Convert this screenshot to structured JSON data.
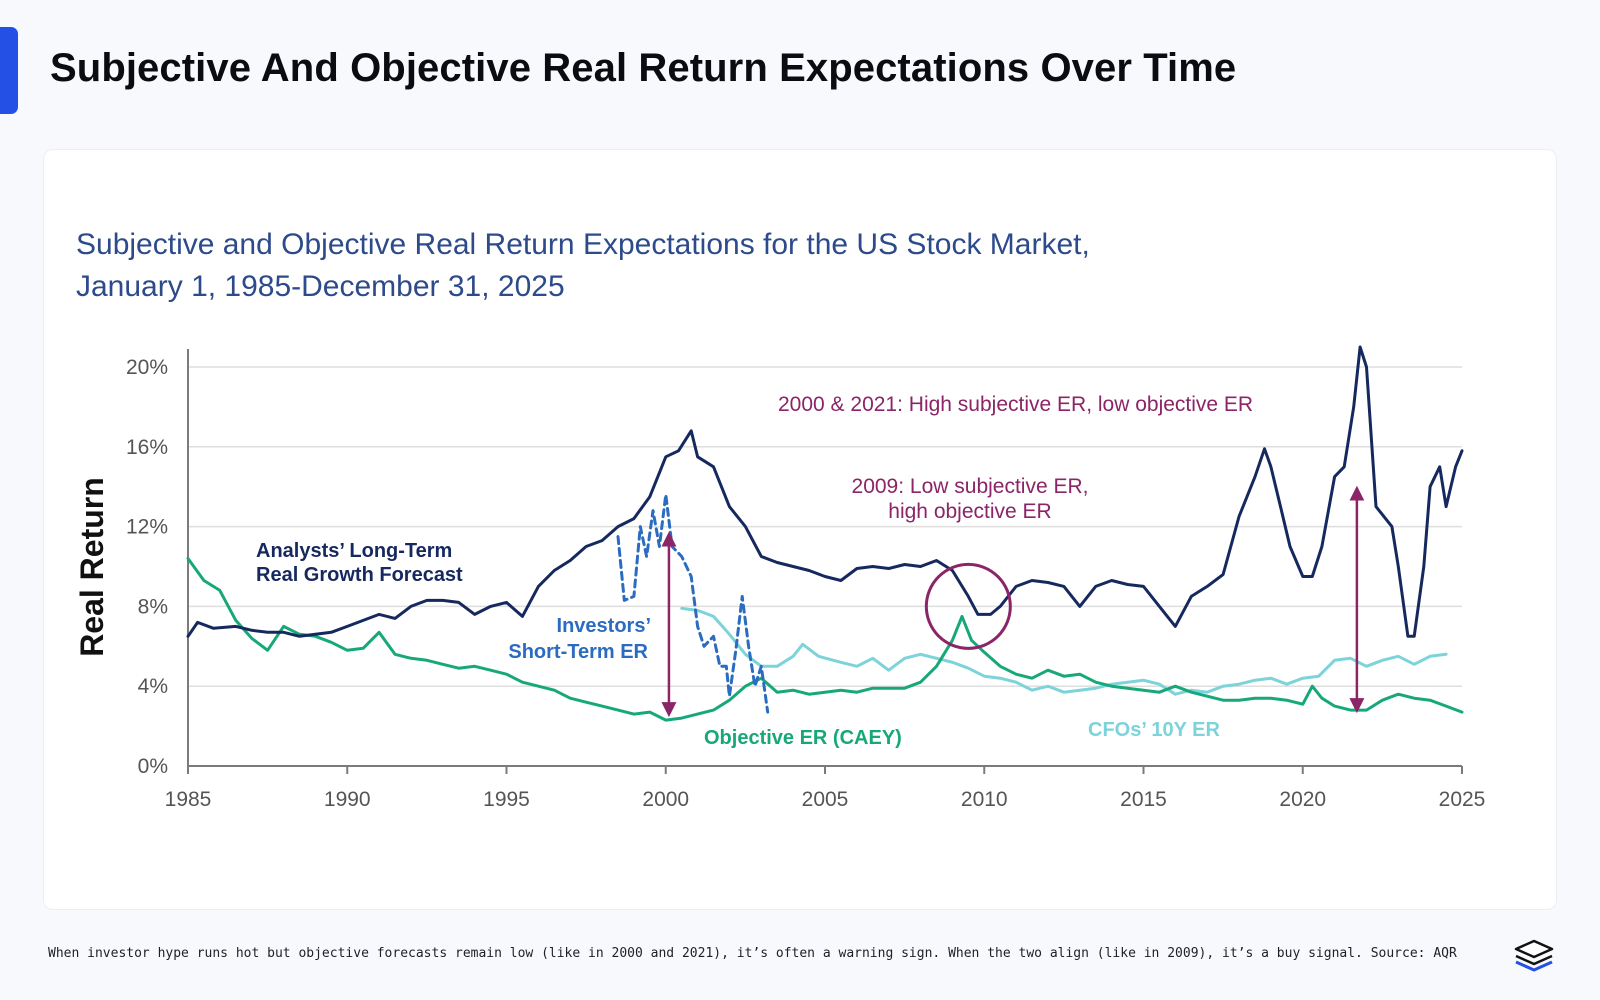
{
  "page": {
    "title": "Subjective And Objective Real Return Expectations Over Time",
    "caption": "When investor hype runs hot but objective forecasts remain low (like in 2000 and 2021), it’s often a warning sign. When the two align (like in 2009), it’s a buy signal. Source: AQR",
    "accent_color": "#2450e6",
    "logo_icon": "stacked-layers-logo-icon"
  },
  "chart_data": {
    "type": "line",
    "title_line1": "Subjective and Objective Real Return Expectations for the US Stock Market,",
    "title_line2": "January 1, 1985-December 31, 2025",
    "ylabel": "Real Return",
    "xlabel": "",
    "xlim": [
      1985,
      2025
    ],
    "ylim": [
      0,
      20
    ],
    "y_ticks": [
      0,
      4,
      8,
      12,
      16,
      20
    ],
    "y_tick_labels": [
      "0%",
      "4%",
      "8%",
      "12%",
      "16%",
      "20%"
    ],
    "x_ticks": [
      1985,
      1990,
      1995,
      2000,
      2005,
      2010,
      2015,
      2020,
      2025
    ],
    "x_tick_labels": [
      "1985",
      "1990",
      "1995",
      "2000",
      "2005",
      "2010",
      "2015",
      "2020",
      "2025"
    ],
    "grid": true,
    "series": [
      {
        "name": "Analysts' Long-Term Real Growth Forecast",
        "label_line1": "Analysts’ Long-Term",
        "label_line2": "Real Growth Forecast",
        "color": "#16295f",
        "style": "solid",
        "points": [
          [
            1985,
            6.5
          ],
          [
            1985.3,
            7.2
          ],
          [
            1985.8,
            6.9
          ],
          [
            1986.5,
            7.0
          ],
          [
            1987,
            6.8
          ],
          [
            1987.5,
            6.7
          ],
          [
            1988,
            6.7
          ],
          [
            1988.5,
            6.5
          ],
          [
            1989,
            6.6
          ],
          [
            1989.5,
            6.7
          ],
          [
            1990,
            7.0
          ],
          [
            1990.5,
            7.3
          ],
          [
            1991,
            7.6
          ],
          [
            1991.5,
            7.4
          ],
          [
            1992,
            8.0
          ],
          [
            1992.5,
            8.3
          ],
          [
            1993,
            8.3
          ],
          [
            1993.5,
            8.2
          ],
          [
            1994,
            7.6
          ],
          [
            1994.5,
            8.0
          ],
          [
            1995,
            8.2
          ],
          [
            1995.5,
            7.5
          ],
          [
            1996,
            9.0
          ],
          [
            1996.5,
            9.8
          ],
          [
            1997,
            10.3
          ],
          [
            1997.5,
            11.0
          ],
          [
            1998,
            11.3
          ],
          [
            1998.5,
            12.0
          ],
          [
            1999,
            12.4
          ],
          [
            1999.5,
            13.5
          ],
          [
            2000,
            15.5
          ],
          [
            2000.4,
            15.8
          ],
          [
            2000.8,
            16.8
          ],
          [
            2001,
            15.5
          ],
          [
            2001.5,
            15.0
          ],
          [
            2002,
            13.0
          ],
          [
            2002.5,
            12.0
          ],
          [
            2003,
            10.5
          ],
          [
            2003.5,
            10.2
          ],
          [
            2004,
            10.0
          ],
          [
            2004.5,
            9.8
          ],
          [
            2005,
            9.5
          ],
          [
            2005.5,
            9.3
          ],
          [
            2006,
            9.9
          ],
          [
            2006.5,
            10.0
          ],
          [
            2007,
            9.9
          ],
          [
            2007.5,
            10.1
          ],
          [
            2008,
            10.0
          ],
          [
            2008.5,
            10.3
          ],
          [
            2009,
            9.8
          ],
          [
            2009.5,
            8.5
          ],
          [
            2009.8,
            7.6
          ],
          [
            2010.2,
            7.6
          ],
          [
            2010.5,
            8.0
          ],
          [
            2011,
            9.0
          ],
          [
            2011.5,
            9.3
          ],
          [
            2012,
            9.2
          ],
          [
            2012.5,
            9.0
          ],
          [
            2013,
            8.0
          ],
          [
            2013.5,
            9.0
          ],
          [
            2014,
            9.3
          ],
          [
            2014.5,
            9.1
          ],
          [
            2015,
            9.0
          ],
          [
            2015.5,
            8.0
          ],
          [
            2016,
            7.0
          ],
          [
            2016.5,
            8.5
          ],
          [
            2017,
            9.0
          ],
          [
            2017.5,
            9.6
          ],
          [
            2018,
            12.5
          ],
          [
            2018.5,
            14.5
          ],
          [
            2018.8,
            15.9
          ],
          [
            2019,
            15.0
          ],
          [
            2019.3,
            13.0
          ],
          [
            2019.6,
            11.0
          ],
          [
            2020,
            9.5
          ],
          [
            2020.3,
            9.5
          ],
          [
            2020.6,
            11.0
          ],
          [
            2021,
            14.5
          ],
          [
            2021.3,
            15.0
          ],
          [
            2021.6,
            18.0
          ],
          [
            2021.8,
            21.0
          ],
          [
            2022,
            20.0
          ],
          [
            2022.3,
            13.0
          ],
          [
            2022.8,
            12.0
          ],
          [
            2023,
            10.0
          ],
          [
            2023.3,
            6.5
          ],
          [
            2023.5,
            6.5
          ],
          [
            2023.8,
            10.0
          ],
          [
            2024,
            14.0
          ],
          [
            2024.3,
            15.0
          ],
          [
            2024.5,
            13.0
          ],
          [
            2024.8,
            15.0
          ],
          [
            2025,
            15.8
          ]
        ]
      },
      {
        "name": "Investors' Short-Term ER",
        "label_line1": "Investors’",
        "label_line2": "Short-Term ER",
        "color": "#2b6cc0",
        "style": "dashed",
        "points": [
          [
            1998.5,
            11.5
          ],
          [
            1998.7,
            8.3
          ],
          [
            1999,
            8.5
          ],
          [
            1999.2,
            12.0
          ],
          [
            1999.4,
            10.5
          ],
          [
            1999.6,
            12.8
          ],
          [
            1999.8,
            11.0
          ],
          [
            2000,
            13.6
          ],
          [
            2000.2,
            11.0
          ],
          [
            2000.5,
            10.5
          ],
          [
            2000.8,
            9.5
          ],
          [
            2001,
            7.0
          ],
          [
            2001.2,
            6.0
          ],
          [
            2001.5,
            6.5
          ],
          [
            2001.7,
            5.0
          ],
          [
            2001.9,
            5.0
          ],
          [
            2002,
            3.5
          ],
          [
            2002.2,
            5.8
          ],
          [
            2002.4,
            8.5
          ],
          [
            2002.6,
            6.0
          ],
          [
            2002.8,
            4.0
          ],
          [
            2003,
            5.0
          ],
          [
            2003.2,
            2.7
          ]
        ]
      },
      {
        "name": "Objective ER (CAEY)",
        "label_line1": "Objective ER (CAEY)",
        "label_line2": "",
        "color": "#17a87a",
        "style": "solid",
        "points": [
          [
            1985,
            10.4
          ],
          [
            1985.5,
            9.3
          ],
          [
            1986,
            8.8
          ],
          [
            1986.5,
            7.3
          ],
          [
            1987,
            6.4
          ],
          [
            1987.5,
            5.8
          ],
          [
            1988,
            7.0
          ],
          [
            1988.5,
            6.6
          ],
          [
            1989,
            6.5
          ],
          [
            1989.5,
            6.2
          ],
          [
            1990,
            5.8
          ],
          [
            1990.5,
            5.9
          ],
          [
            1991,
            6.7
          ],
          [
            1991.5,
            5.6
          ],
          [
            1992,
            5.4
          ],
          [
            1992.5,
            5.3
          ],
          [
            1993,
            5.1
          ],
          [
            1993.5,
            4.9
          ],
          [
            1994,
            5.0
          ],
          [
            1994.5,
            4.8
          ],
          [
            1995,
            4.6
          ],
          [
            1995.5,
            4.2
          ],
          [
            1996,
            4.0
          ],
          [
            1996.5,
            3.8
          ],
          [
            1997,
            3.4
          ],
          [
            1997.5,
            3.2
          ],
          [
            1998,
            3.0
          ],
          [
            1998.5,
            2.8
          ],
          [
            1999,
            2.6
          ],
          [
            1999.5,
            2.7
          ],
          [
            2000,
            2.3
          ],
          [
            2000.5,
            2.4
          ],
          [
            2001,
            2.6
          ],
          [
            2001.5,
            2.8
          ],
          [
            2002,
            3.3
          ],
          [
            2002.5,
            4.0
          ],
          [
            2003,
            4.4
          ],
          [
            2003.5,
            3.7
          ],
          [
            2004,
            3.8
          ],
          [
            2004.5,
            3.6
          ],
          [
            2005,
            3.7
          ],
          [
            2005.5,
            3.8
          ],
          [
            2006,
            3.7
          ],
          [
            2006.5,
            3.9
          ],
          [
            2007,
            3.9
          ],
          [
            2007.5,
            3.9
          ],
          [
            2008,
            4.2
          ],
          [
            2008.5,
            5.0
          ],
          [
            2009,
            6.3
          ],
          [
            2009.3,
            7.5
          ],
          [
            2009.6,
            6.3
          ],
          [
            2010,
            5.7
          ],
          [
            2010.5,
            5.0
          ],
          [
            2011,
            4.6
          ],
          [
            2011.5,
            4.4
          ],
          [
            2012,
            4.8
          ],
          [
            2012.5,
            4.5
          ],
          [
            2013,
            4.6
          ],
          [
            2013.5,
            4.2
          ],
          [
            2014,
            4.0
          ],
          [
            2014.5,
            3.9
          ],
          [
            2015,
            3.8
          ],
          [
            2015.5,
            3.7
          ],
          [
            2016,
            4.0
          ],
          [
            2016.5,
            3.7
          ],
          [
            2017,
            3.5
          ],
          [
            2017.5,
            3.3
          ],
          [
            2018,
            3.3
          ],
          [
            2018.5,
            3.4
          ],
          [
            2019,
            3.4
          ],
          [
            2019.5,
            3.3
          ],
          [
            2020,
            3.1
          ],
          [
            2020.3,
            4.0
          ],
          [
            2020.6,
            3.4
          ],
          [
            2021,
            3.0
          ],
          [
            2021.5,
            2.8
          ],
          [
            2022,
            2.8
          ],
          [
            2022.5,
            3.3
          ],
          [
            2023,
            3.6
          ],
          [
            2023.5,
            3.4
          ],
          [
            2024,
            3.3
          ],
          [
            2024.5,
            3.0
          ],
          [
            2025,
            2.7
          ]
        ]
      },
      {
        "name": "CFOs' 10Y ER",
        "label_line1": "CFOs’ 10Y ER",
        "label_line2": "",
        "color": "#7dd3da",
        "style": "solid",
        "points": [
          [
            2000.5,
            7.9
          ],
          [
            2001,
            7.8
          ],
          [
            2001.5,
            7.5
          ],
          [
            2002,
            6.6
          ],
          [
            2002.5,
            5.6
          ],
          [
            2003,
            5.0
          ],
          [
            2003.5,
            5.0
          ],
          [
            2004,
            5.5
          ],
          [
            2004.3,
            6.1
          ],
          [
            2004.8,
            5.5
          ],
          [
            2005.5,
            5.2
          ],
          [
            2006,
            5.0
          ],
          [
            2006.5,
            5.4
          ],
          [
            2007,
            4.8
          ],
          [
            2007.5,
            5.4
          ],
          [
            2008,
            5.6
          ],
          [
            2008.5,
            5.4
          ],
          [
            2009,
            5.2
          ],
          [
            2009.5,
            4.9
          ],
          [
            2010,
            4.5
          ],
          [
            2010.5,
            4.4
          ],
          [
            2011,
            4.2
          ],
          [
            2011.5,
            3.8
          ],
          [
            2012,
            4.0
          ],
          [
            2012.5,
            3.7
          ],
          [
            2013,
            3.8
          ],
          [
            2013.5,
            3.9
          ],
          [
            2014,
            4.1
          ],
          [
            2014.5,
            4.2
          ],
          [
            2015,
            4.3
          ],
          [
            2015.5,
            4.1
          ],
          [
            2016,
            3.6
          ],
          [
            2016.5,
            3.8
          ],
          [
            2017,
            3.7
          ],
          [
            2017.5,
            4.0
          ],
          [
            2018,
            4.1
          ],
          [
            2018.5,
            4.3
          ],
          [
            2019,
            4.4
          ],
          [
            2019.5,
            4.1
          ],
          [
            2020,
            4.4
          ],
          [
            2020.5,
            4.5
          ],
          [
            2021,
            5.3
          ],
          [
            2021.5,
            5.4
          ],
          [
            2022,
            5.0
          ],
          [
            2022.5,
            5.3
          ],
          [
            2023,
            5.5
          ],
          [
            2023.5,
            5.1
          ],
          [
            2024,
            5.5
          ],
          [
            2024.5,
            5.6
          ]
        ]
      }
    ],
    "annotations": {
      "high_subjective": "2000 & 2021: High subjective ER, low objective ER",
      "low_subjective_line1": "2009: Low subjective ER,",
      "low_subjective_line2": "high objective ER",
      "annotation_color": "#8b2567",
      "arrows": [
        {
          "name": "spread-arrow-2000",
          "x": 2000.1,
          "y_top": 11.6,
          "y_bottom": 2.6
        },
        {
          "name": "spread-arrow-2021",
          "x": 2021.7,
          "y_top": 13.9,
          "y_bottom": 2.8
        }
      ],
      "circle": {
        "name": "circle-2009",
        "x": 2009.5,
        "y": 8.0
      }
    },
    "colors": {
      "axis": "#7b7b7b",
      "grid": "#dedede",
      "tick_text": "#555555",
      "title_text": "#2d4a8a",
      "ylabel_text": "#111111"
    }
  }
}
